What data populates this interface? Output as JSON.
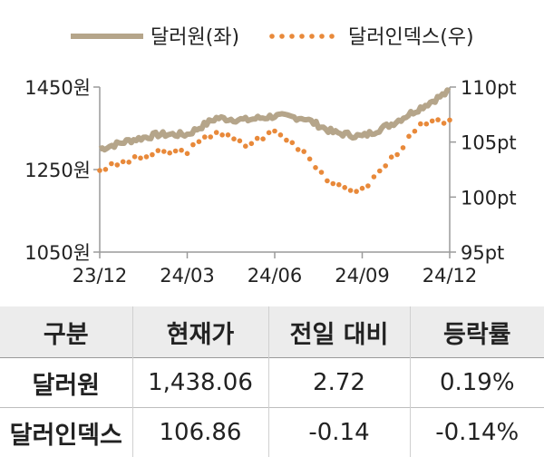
{
  "chart_data": {
    "type": "line",
    "x_ticks": [
      "23/12",
      "24/03",
      "24/06",
      "24/09",
      "24/12"
    ],
    "y_left": {
      "ticks": [
        "1450원",
        "1250원",
        "1050원"
      ],
      "range": [
        1050,
        1450
      ]
    },
    "y_right": {
      "ticks": [
        "110pt",
        "105pt",
        "100pt",
        "95pt"
      ],
      "range": [
        95,
        110
      ]
    },
    "legend_position": "top",
    "grid": false,
    "series": [
      {
        "name": "달러원(좌)",
        "axis": "left",
        "style": "solid",
        "color": "#b5a58a",
        "x": [
          "23/12",
          "24/01",
          "24/02",
          "24/03",
          "24/04",
          "24/05",
          "24/06",
          "24/07",
          "24/08",
          "24/09",
          "24/10",
          "24/11",
          "24/12"
        ],
        "values": [
          1300,
          1320,
          1335,
          1335,
          1375,
          1370,
          1380,
          1375,
          1340,
          1330,
          1360,
          1400,
          1440
        ]
      },
      {
        "name": "달러인덱스(우)",
        "axis": "right",
        "style": "dotted",
        "color": "#e8893a",
        "x": [
          "23/12",
          "24/01",
          "24/02",
          "24/03",
          "24/04",
          "24/05",
          "24/06",
          "24/07",
          "24/08",
          "24/09",
          "24/10",
          "24/11",
          "24/12"
        ],
        "values": [
          102.5,
          103.3,
          104.0,
          104.2,
          106.0,
          104.7,
          106.0,
          104.2,
          101.0,
          100.6,
          103.5,
          106.5,
          107.0
        ]
      }
    ]
  },
  "table": {
    "headers": [
      "구분",
      "현재가",
      "전일 대비",
      "등락률"
    ],
    "rows": [
      [
        "달러원",
        "1,438.06",
        "2.72",
        "0.19%"
      ],
      [
        "달러인덱스",
        "106.86",
        "-0.14",
        "-0.14%"
      ]
    ]
  }
}
